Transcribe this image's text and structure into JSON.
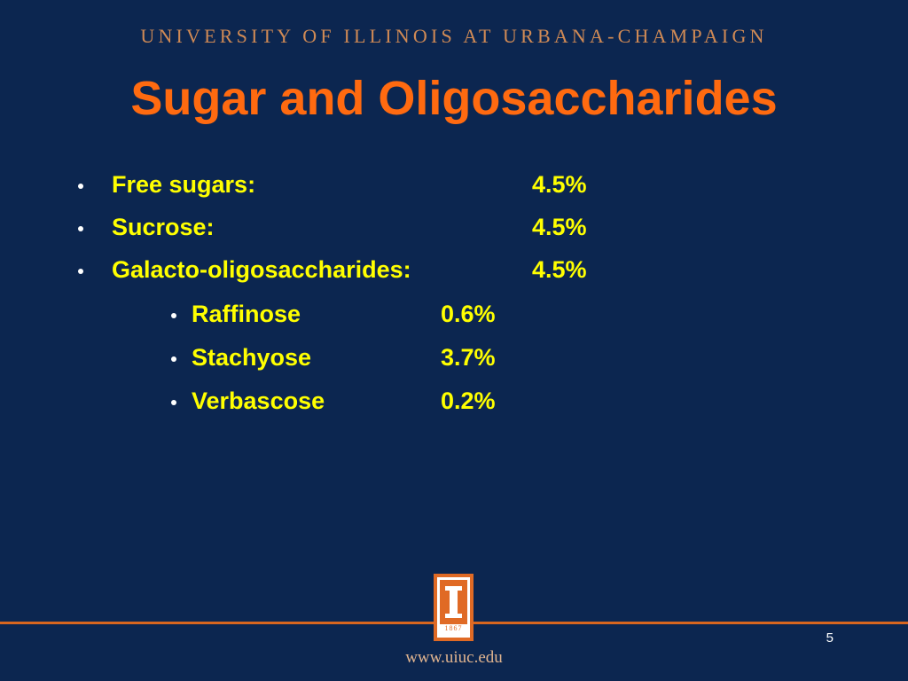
{
  "header": {
    "institution": "UNIVERSITY OF ILLINOIS AT URBANA-CHAMPAIGN",
    "title": "Sugar and Oligosaccharides"
  },
  "items": [
    {
      "label": "Free sugars:",
      "value": "4.5%"
    },
    {
      "label": "Sucrose:",
      "value": "4.5%"
    },
    {
      "label": "Galacto-oligosaccharides:",
      "value": "4.5%",
      "subitems": [
        {
          "label": "Raffinose",
          "value": "0.6%"
        },
        {
          "label": "Stachyose",
          "value": "3.7%"
        },
        {
          "label": "Verbascose",
          "value": "0.2%"
        }
      ]
    }
  ],
  "footer": {
    "logo_year": "1867",
    "page_number": "5",
    "url": "www.uiuc.edu"
  }
}
